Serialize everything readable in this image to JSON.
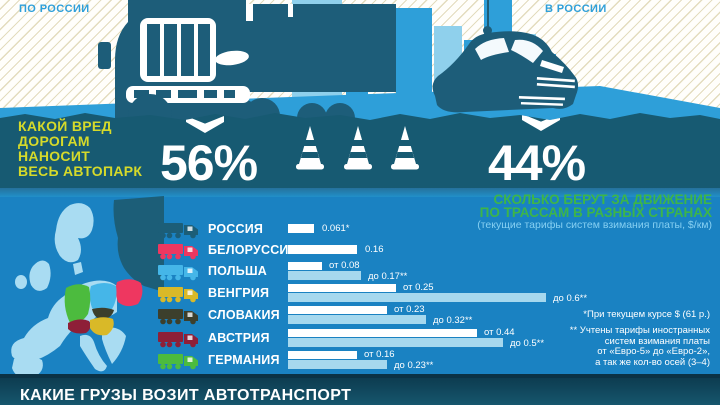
{
  "top": {
    "caption_left": "ПО РОССИИ",
    "caption_right": "В РОССИИ"
  },
  "damage": {
    "heading": "КАКОЙ ВРЕД\nДОРОГАМ\nНАНОСИТ\nВЕСЬ АВТОПАРК",
    "truck_share": "56%",
    "car_share": "44%"
  },
  "tolls": {
    "title": "СКОЛЬКО БЕРУТ ЗА ДВИЖЕНИЕ\nПО ТРАССАМ В РАЗНЫХ СТРАНАХ",
    "subtitle": "(текущие тарифы систем взимания платы, $/км)",
    "footnote_1": "*При текущем курсе $ (61 р.)",
    "footnote_2": "** Учтены тарифы иностранных\nсистем взимания платы\nот «Евро-5» до «Евро-2»,\nа так же кол-во осей (3–4)"
  },
  "chart_data": {
    "type": "bar",
    "orientation": "horizontal",
    "title": "СКОЛЬКО БЕРУТ ЗА ДВИЖЕНИЕ ПО ТРАССАМ В РАЗНЫХ СТРАНАХ",
    "subtitle": "(текущие тарифы систем взимания платы, $/км)",
    "unit": "$/км",
    "xlim": [
      0,
      0.65
    ],
    "legend_note": "белая полоса — нижний тариф, светло-голубая — верхний тариф",
    "countries": [
      {
        "name": "РОССИЯ",
        "color": "#1c5e78",
        "values": [
          0.061
        ],
        "labels": [
          "0.061*"
        ]
      },
      {
        "name": "БЕЛОРУССИЯ",
        "color": "#ee3760",
        "values": [
          0.16
        ],
        "labels": [
          "0.16"
        ]
      },
      {
        "name": "ПОЛЬША",
        "color": "#45b6e8",
        "values": [
          0.08,
          0.17
        ],
        "labels": [
          "от 0.08",
          "до 0.17**"
        ]
      },
      {
        "name": "ВЕНГРИЯ",
        "color": "#d9b928",
        "values": [
          0.25,
          0.6
        ],
        "labels": [
          "от 0.25",
          "до 0.6**"
        ]
      },
      {
        "name": "СЛОВАКИЯ",
        "color": "#3c3f2c",
        "values": [
          0.23,
          0.32
        ],
        "labels": [
          "от 0.23",
          "до 0.32**"
        ]
      },
      {
        "name": "АВСТРИЯ",
        "color": "#8e1f38",
        "values": [
          0.44,
          0.5
        ],
        "labels": [
          "от 0.44",
          "до 0.5**"
        ]
      },
      {
        "name": "ГЕРМАНИЯ",
        "color": "#4cbb3e",
        "values": [
          0.16,
          0.23
        ],
        "labels": [
          "от 0.16",
          "до 0.23**"
        ]
      }
    ]
  },
  "bottom": {
    "title": "КАКИЕ ГРУЗЫ ВОЗИТ АВТОТРАНСПОРТ"
  },
  "colors": {
    "band": "#175a72",
    "ground": "#2e9fd9",
    "chart_bg": "#1a82c2",
    "heading_yellow": "#d6da2a",
    "title_green": "#3db549",
    "bar_min": "#ffffff",
    "bar_max": "#a6d8ee",
    "silhouette": "#1d5d79"
  }
}
